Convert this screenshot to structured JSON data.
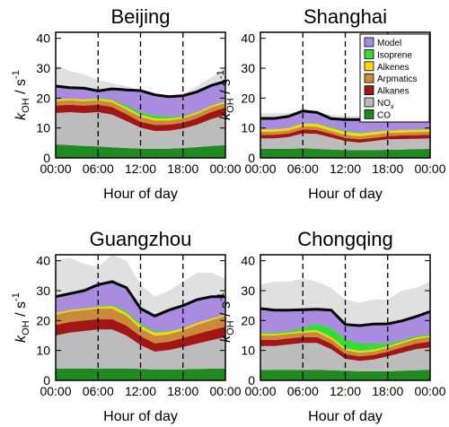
{
  "colors": {
    "model": "#a98be0",
    "isoprene": "#33dd33",
    "alkenes": "#f7d51b",
    "aromatics": "#c98a3a",
    "alkanes": "#a31616",
    "nox": "#bcbcbc",
    "co": "#1f8a1f",
    "total": "#000000"
  },
  "legend": {
    "entries": [
      {
        "key": "model",
        "label": "Model"
      },
      {
        "key": "isoprene",
        "label": "Isoprene"
      },
      {
        "key": "alkenes",
        "label": "Alkenes"
      },
      {
        "key": "aromatics",
        "label": "Arpmatics"
      },
      {
        "key": "alkanes",
        "label": "Alkanes"
      },
      {
        "key": "nox",
        "label": "NO",
        "sub": "x"
      },
      {
        "key": "co",
        "label": "CO"
      }
    ]
  },
  "axes": {
    "ylabel_main": "k",
    "ylabel_sub": "OH",
    "ylabel_unit": " / s",
    "ylabel_sup": "-1",
    "xlabel": "Hour of day",
    "xticks": [
      "00:00",
      "06:00",
      "12:00",
      "18:00",
      "00:00"
    ],
    "yticks": [
      "0",
      "10",
      "20",
      "30",
      "40"
    ]
  },
  "chart_data": [
    {
      "type": "area",
      "title": "Beijing",
      "xlabel": "Hour of day",
      "ylabel": "kOH / s-1",
      "xlim": [
        0,
        24
      ],
      "ylim": [
        0,
        42
      ],
      "x": [
        0,
        2,
        4,
        6,
        8,
        10,
        12,
        14,
        16,
        18,
        20,
        22,
        24
      ],
      "series": [
        {
          "name": "CO",
          "values": [
            4.5,
            4.3,
            4.0,
            3.8,
            3.5,
            3.3,
            3.1,
            3.0,
            3.1,
            3.3,
            3.6,
            4.0,
            4.3
          ]
        },
        {
          "name": "NOx",
          "values": [
            10.5,
            11,
            11,
            11.5,
            11,
            9,
            7,
            6,
            6,
            6.5,
            7.5,
            9,
            10
          ]
        },
        {
          "name": "Alkanes",
          "values": [
            2.5,
            2.5,
            2.5,
            2.5,
            2.5,
            2.3,
            2,
            2,
            2,
            2,
            2.2,
            2.4,
            2.5
          ]
        },
        {
          "name": "Arpmatics",
          "values": [
            1.5,
            1.5,
            1.5,
            1.5,
            1.6,
            1.6,
            1.6,
            1.5,
            1.4,
            1.4,
            1.4,
            1.5,
            1.5
          ]
        },
        {
          "name": "Alkenes",
          "values": [
            0.5,
            0.5,
            0.5,
            0.5,
            0.6,
            0.7,
            0.7,
            0.7,
            0.6,
            0.5,
            0.5,
            0.5,
            0.5
          ]
        },
        {
          "name": "Isoprene",
          "values": [
            0.1,
            0.1,
            0.1,
            0.2,
            0.4,
            0.7,
            0.9,
            0.9,
            0.7,
            0.4,
            0.2,
            0.1,
            0.1
          ]
        },
        {
          "name": "Model",
          "values": [
            4.1,
            3.7,
            3.7,
            2.9,
            3.5,
            5.1,
            7.2,
            7.0,
            6.7,
            6.7,
            6.7,
            6.7,
            6.7
          ]
        }
      ],
      "total": [
        24,
        23.5,
        23.3,
        22.4,
        23.1,
        22.7,
        22.5,
        21.1,
        20.5,
        20.8,
        22.1,
        24.2,
        25.6
      ],
      "nox_upper": [
        31,
        29,
        28,
        26,
        25,
        24,
        22.5,
        21,
        20.5,
        21.5,
        24,
        27,
        30
      ]
    },
    {
      "type": "area",
      "title": "Shanghai",
      "xlabel": "Hour of day",
      "ylabel": "kOH / s-1",
      "xlim": [
        0,
        24
      ],
      "ylim": [
        0,
        42
      ],
      "x": [
        0,
        2,
        4,
        6,
        8,
        10,
        12,
        14,
        16,
        18,
        20,
        22,
        24
      ],
      "series": [
        {
          "name": "CO",
          "values": [
            3.0,
            3.0,
            3.0,
            3.2,
            3.0,
            2.8,
            2.6,
            2.6,
            2.6,
            2.7,
            2.8,
            2.9,
            3.0
          ]
        },
        {
          "name": "NOx",
          "values": [
            3.5,
            3.5,
            4,
            5,
            5,
            4,
            3,
            2.5,
            3,
            3.5,
            3.5,
            3.5,
            3.5
          ]
        },
        {
          "name": "Alkanes",
          "values": [
            1.2,
            1.2,
            1.2,
            1.3,
            1.3,
            1.2,
            1.1,
            1.1,
            1.1,
            1.1,
            1.2,
            1.2,
            1.2
          ]
        },
        {
          "name": "Arpmatics",
          "values": [
            1.0,
            1.0,
            1.0,
            1.1,
            1.1,
            1.0,
            1.0,
            1.0,
            1.0,
            1.0,
            1.0,
            1.0,
            1.0
          ]
        },
        {
          "name": "Alkenes",
          "values": [
            0.8,
            0.8,
            0.8,
            0.9,
            1.0,
            1.0,
            1.0,
            1.0,
            0.9,
            0.8,
            0.8,
            0.8,
            0.8
          ]
        },
        {
          "name": "Isoprene",
          "values": [
            0.1,
            0.1,
            0.1,
            0.1,
            0.2,
            0.3,
            0.3,
            0.3,
            0.2,
            0.1,
            0.1,
            0.1,
            0.1
          ]
        },
        {
          "name": "Model",
          "values": [
            3.6,
            3.6,
            3.8,
            4.1,
            3.6,
            2.8,
            3.8,
            4.3,
            4.2,
            4.3,
            4.6,
            4.3,
            4.1
          ]
        }
      ],
      "total": [
        13.2,
        13.2,
        13.9,
        15.7,
        15.2,
        13.1,
        12.8,
        12.8,
        13.0,
        13.5,
        14.0,
        13.8,
        13.7
      ],
      "nox_upper": [
        15,
        15,
        15,
        15.5,
        15,
        14.5,
        14,
        14,
        14,
        14.5,
        15,
        15.5,
        15
      ]
    },
    {
      "type": "area",
      "title": "Guangzhou",
      "xlabel": "Hour of day",
      "ylabel": "kOH / s-1",
      "xlim": [
        0,
        24
      ],
      "ylim": [
        0,
        42
      ],
      "x": [
        0,
        2,
        4,
        6,
        8,
        10,
        12,
        14,
        16,
        18,
        20,
        22,
        24
      ],
      "series": [
        {
          "name": "CO",
          "values": [
            4.0,
            4.0,
            4.0,
            4.0,
            4.0,
            4.0,
            3.8,
            3.6,
            3.6,
            3.7,
            3.8,
            3.9,
            4.0
          ]
        },
        {
          "name": "NOx",
          "values": [
            11,
            12,
            12.5,
            13,
            13,
            11,
            8,
            6,
            6.5,
            7.5,
            8.5,
            9.5,
            10.5
          ]
        },
        {
          "name": "Alkanes",
          "values": [
            3.5,
            3.5,
            3.5,
            3.5,
            3.5,
            3.3,
            3,
            2.8,
            2.8,
            3,
            3.2,
            3.4,
            3.5
          ]
        },
        {
          "name": "Arpmatics",
          "values": [
            3.5,
            3.5,
            3.5,
            3.5,
            3.5,
            3.3,
            2.5,
            2.5,
            2.5,
            2.5,
            3,
            3.3,
            3.5
          ]
        },
        {
          "name": "Alkenes",
          "values": [
            0.5,
            0.5,
            0.5,
            0.5,
            0.8,
            0.9,
            1.0,
            1.0,
            0.9,
            0.7,
            0.6,
            0.5,
            0.5
          ]
        },
        {
          "name": "Isoprene",
          "values": [
            0.1,
            0.1,
            0.1,
            0.2,
            0.4,
            0.6,
            0.6,
            0.5,
            0.3,
            0.1,
            0.1,
            0.1,
            0.1
          ]
        },
        {
          "name": "Model",
          "values": [
            5.4,
            5.4,
            5.9,
            7.3,
            7.8,
            7.9,
            5.1,
            5.1,
            6.9,
            7.5,
            7.8,
            7.3,
            6.4
          ]
        }
      ],
      "total": [
        28,
        29,
        30,
        32,
        33,
        31,
        24,
        21.5,
        23.5,
        25,
        27,
        28,
        28
      ],
      "nox_upper": [
        40,
        41,
        39,
        38,
        42,
        40,
        32,
        28,
        30,
        33,
        36,
        36,
        34
      ]
    },
    {
      "type": "area",
      "title": "Chongqing",
      "xlabel": "Hour of day",
      "ylabel": "kOH / s-1",
      "xlim": [
        0,
        24
      ],
      "ylim": [
        0,
        42
      ],
      "x": [
        0,
        2,
        4,
        6,
        8,
        10,
        12,
        14,
        16,
        18,
        20,
        22,
        24
      ],
      "series": [
        {
          "name": "CO",
          "values": [
            3.5,
            3.5,
            3.5,
            3.5,
            3.5,
            3.4,
            3.2,
            3.0,
            3.0,
            3.0,
            3.2,
            3.4,
            3.5
          ]
        },
        {
          "name": "NOx",
          "values": [
            8,
            8,
            8.5,
            9,
            9,
            7,
            4,
            3.5,
            4,
            5,
            6,
            7,
            7.5
          ]
        },
        {
          "name": "Alkanes",
          "values": [
            2,
            2,
            2,
            2,
            2,
            1.9,
            1.6,
            1.5,
            1.5,
            1.6,
            1.8,
            1.9,
            2
          ]
        },
        {
          "name": "Arpmatics",
          "values": [
            1.5,
            1.5,
            1.5,
            1.5,
            1.6,
            1.5,
            1.3,
            1.2,
            1.2,
            1.3,
            1.4,
            1.5,
            1.5
          ]
        },
        {
          "name": "Alkenes",
          "values": [
            0.5,
            0.5,
            0.5,
            0.6,
            0.7,
            0.7,
            0.6,
            0.6,
            0.6,
            0.5,
            0.5,
            0.5,
            0.5
          ]
        },
        {
          "name": "Isoprene",
          "values": [
            0.5,
            0.5,
            0.5,
            1,
            2,
            3,
            3,
            2.5,
            2,
            1,
            0.5,
            0.5,
            0.5
          ]
        },
        {
          "name": "Model",
          "values": [
            8,
            7.5,
            7,
            6,
            5,
            6,
            5,
            6,
            6.5,
            6.5,
            6.5,
            6.5,
            7.5
          ]
        }
      ],
      "total": [
        24,
        23.5,
        23.5,
        23.6,
        23.8,
        23.5,
        18.7,
        18.3,
        18.8,
        18.9,
        19.9,
        21.3,
        23
      ],
      "nox_upper": [
        32,
        33,
        33,
        34,
        33,
        31,
        27,
        26,
        27,
        27,
        30,
        31,
        33
      ]
    }
  ]
}
